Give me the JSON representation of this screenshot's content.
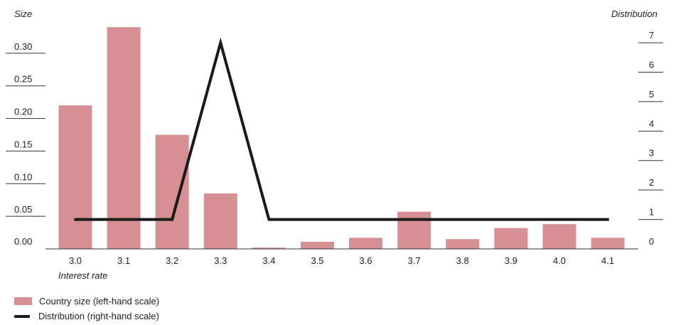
{
  "chart_data": {
    "type": "bar",
    "categories": [
      "3.0",
      "3.1",
      "3.2",
      "3.3",
      "3.4",
      "3.5",
      "3.6",
      "3.7",
      "3.8",
      "3.9",
      "4.0",
      "4.1"
    ],
    "series": [
      {
        "name": "Country size (left-hand scale)",
        "kind": "bar",
        "axis": "left",
        "values": [
          0.22,
          0.34,
          0.175,
          0.085,
          0.002,
          0.011,
          0.017,
          0.057,
          0.015,
          0.032,
          0.038,
          0.017
        ]
      },
      {
        "name": "Distribution (right-hand scale)",
        "kind": "line",
        "axis": "right",
        "values": [
          1,
          1,
          1,
          7,
          1,
          1,
          1,
          1,
          1,
          1,
          1,
          1
        ]
      }
    ],
    "left_axis": {
      "title": "Size",
      "ticks": [
        "0.00",
        "0.05",
        "0.10",
        "0.15",
        "0.20",
        "0.25",
        "0.30"
      ],
      "ylim": [
        0,
        0.35
      ]
    },
    "right_axis": {
      "title": "Distribution",
      "ticks": [
        "0",
        "1",
        "2",
        "3",
        "4",
        "5",
        "6",
        "7"
      ],
      "ylim": [
        0,
        7.75
      ]
    },
    "xlabel": "Interest rate",
    "colors": {
      "bar": "#d68f92",
      "line": "#1a1a1a",
      "rule": "#333333"
    }
  },
  "legend": {
    "items": [
      "Country size (left-hand scale)",
      "Distribution (right-hand scale)"
    ]
  }
}
